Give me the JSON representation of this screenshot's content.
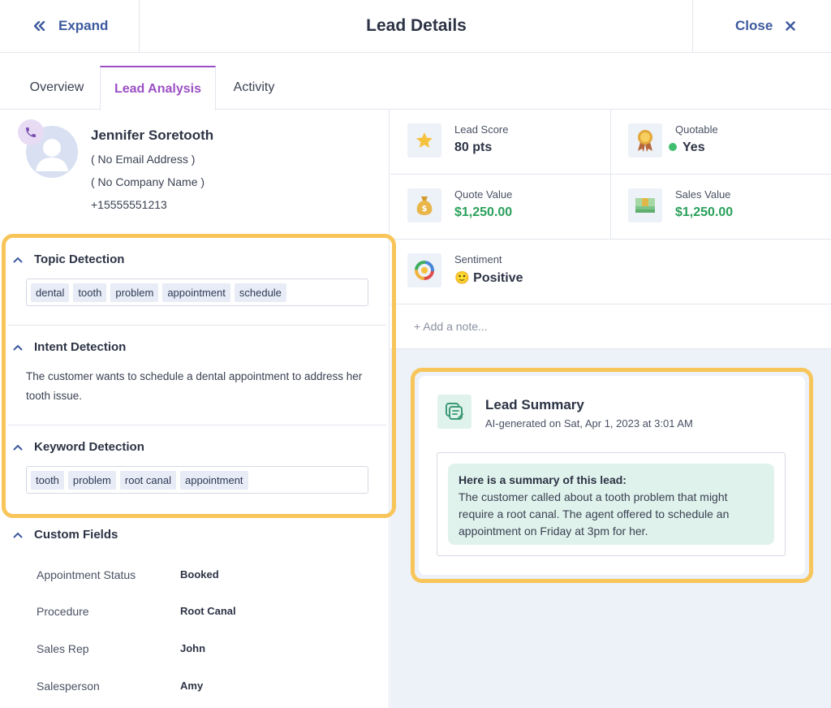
{
  "header": {
    "expand_label": "Expand",
    "title": "Lead Details",
    "close_label": "Close"
  },
  "tabs": [
    {
      "label": "Overview",
      "active": false
    },
    {
      "label": "Lead Analysis",
      "active": true
    },
    {
      "label": "Activity",
      "active": false
    }
  ],
  "contact": {
    "name": "Jennifer Soretooth",
    "email": "( No Email Address )",
    "company": "( No Company Name )",
    "phone": "+15555551213"
  },
  "topic_detection": {
    "title": "Topic Detection",
    "tags": [
      "dental",
      "tooth",
      "problem",
      "appointment",
      "schedule"
    ]
  },
  "intent_detection": {
    "title": "Intent Detection",
    "text": "The customer wants to schedule a dental appointment to address her tooth issue."
  },
  "keyword_detection": {
    "title": "Keyword Detection",
    "tags": [
      "tooth",
      "problem",
      "root canal",
      "appointment"
    ]
  },
  "custom_fields": {
    "title": "Custom Fields",
    "rows": [
      {
        "label": "Appointment Status",
        "value": "Booked"
      },
      {
        "label": "Procedure",
        "value": "Root Canal"
      },
      {
        "label": "Sales Rep",
        "value": "John"
      },
      {
        "label": "Salesperson",
        "value": "Amy"
      }
    ]
  },
  "metrics": {
    "lead_score": {
      "label": "Lead Score",
      "value": "80 pts",
      "icon": "star-icon"
    },
    "quotable": {
      "label": "Quotable",
      "value": "Yes",
      "icon": "award-ribbon-icon"
    },
    "quote_value": {
      "label": "Quote Value",
      "value": "$1,250.00",
      "icon": "money-bag-icon"
    },
    "sales_value": {
      "label": "Sales Value",
      "value": "$1,250.00",
      "icon": "cash-stack-icon"
    },
    "sentiment": {
      "label": "Sentiment",
      "value": "Positive",
      "emoji": "🙂",
      "icon": "sentiment-ring-icon"
    }
  },
  "note": {
    "placeholder": "+ Add a note..."
  },
  "summary": {
    "title": "Lead Summary",
    "subtitle": "AI-generated on Sat, Apr 1, 2023 at 3:01 AM",
    "heading": "Here is a summary of this lead:",
    "body": "The customer called about a tooth problem that might require a root canal. The agent offered to schedule an appointment on Friday at 3pm for her."
  },
  "colors": {
    "accent_blue": "#3d5a9e",
    "active_tab": "#9b4fc4",
    "positive_green": "#2aa05a",
    "highlight": "#f8c55a"
  }
}
